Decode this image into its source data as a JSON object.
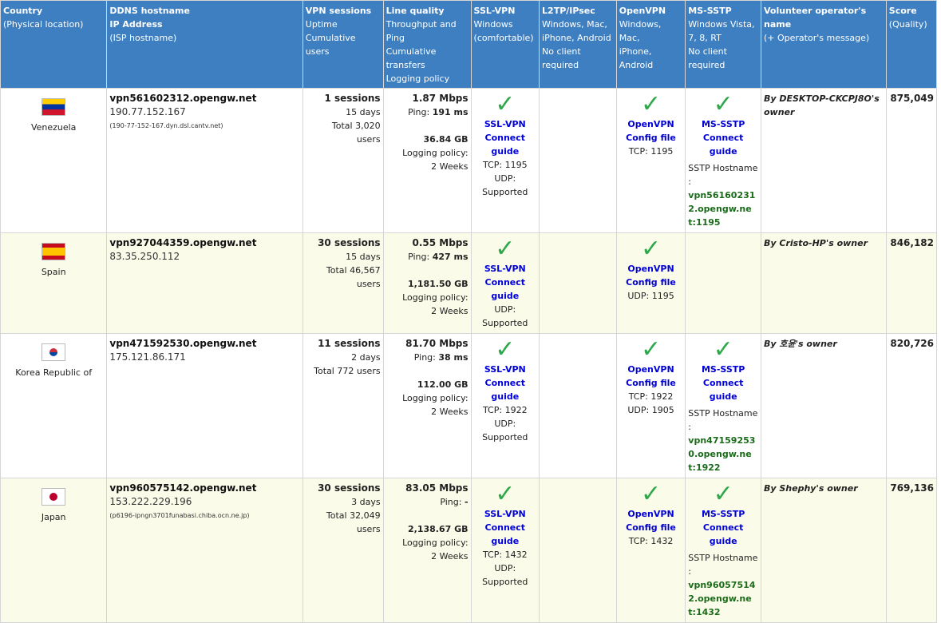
{
  "header": {
    "country": [
      "Country",
      "(Physical location)"
    ],
    "ddns": [
      "DDNS hostname",
      "IP Address",
      "(ISP hostname)"
    ],
    "sessions": [
      "VPN sessions",
      "Uptime",
      "Cumulative users"
    ],
    "quality": [
      "Line quality",
      "Throughput and Ping",
      "Cumulative transfers",
      "Logging policy"
    ],
    "sslvpn": [
      "SSL-VPN",
      "Windows",
      "(comfortable)"
    ],
    "l2tp": [
      "L2TP/IPsec",
      "Windows, Mac,",
      "iPhone, Android",
      "No client required"
    ],
    "openvpn": [
      "OpenVPN",
      "Windows, Mac,",
      "iPhone, Android"
    ],
    "mssstp": [
      "MS-SSTP",
      "Windows Vista,",
      "7, 8, RT",
      "No client required"
    ],
    "operator": [
      "Volunteer operator's name",
      "(+ Operator's message)"
    ],
    "score": [
      "Score",
      "(Quality)"
    ]
  },
  "rows": [
    {
      "country": "Venezuela",
      "host": "vpn561602312.opengw.net",
      "ip": "190.77.152.167",
      "isp": "(190-77-152-167.dyn.dsl.cantv.net)",
      "sessions": "1 sessions",
      "uptime": "15 days",
      "users": "Total 3,020 users",
      "throughput": "1.87 Mbps",
      "ping_label": "Ping: ",
      "ping": "191 ms",
      "transfer": "36.84 GB",
      "logging_label": "Logging policy:",
      "logging": "2 Weeks",
      "ssl_link1": "SSL-VPN",
      "ssl_link2": "Connect guide",
      "ssl_tcp": "TCP: 1195",
      "ssl_udp": "UDP: Supported",
      "ovpn_link1": "OpenVPN",
      "ovpn_link2": "Config file",
      "ovpn_p1": "TCP: 1195",
      "ovpn_p2": "",
      "sstp_link1": "MS-SSTP",
      "sstp_link2": "Connect guide",
      "sstp_label": "SSTP Hostname :",
      "sstp_host": "vpn561602312.opengw.net:1195",
      "operator": "By DESKTOP-CKCPJ8O's owner",
      "score": "875,049"
    },
    {
      "country": "Spain",
      "host": "vpn927044359.opengw.net",
      "ip": "83.35.250.112",
      "isp": "",
      "sessions": "30 sessions",
      "uptime": "15 days",
      "users": "Total 46,567 users",
      "throughput": "0.55 Mbps",
      "ping_label": "Ping: ",
      "ping": "427 ms",
      "transfer": "1,181.50 GB",
      "logging_label": "Logging policy:",
      "logging": "2 Weeks",
      "ssl_link1": "SSL-VPN",
      "ssl_link2": "Connect guide",
      "ssl_tcp": "",
      "ssl_udp": "UDP: Supported",
      "ovpn_link1": "OpenVPN",
      "ovpn_link2": "Config file",
      "ovpn_p1": "UDP: 1195",
      "ovpn_p2": "",
      "sstp_link1": "",
      "sstp_link2": "",
      "sstp_label": "",
      "sstp_host": "",
      "operator": "By Cristo-HP's owner",
      "score": "846,182"
    },
    {
      "country": "Korea Republic of",
      "host": "vpn471592530.opengw.net",
      "ip": "175.121.86.171",
      "isp": "",
      "sessions": "11 sessions",
      "uptime": "2 days",
      "users": "Total 772 users",
      "throughput": "81.70 Mbps",
      "ping_label": "Ping: ",
      "ping": "38 ms",
      "transfer": "112.00 GB",
      "logging_label": "Logging policy:",
      "logging": "2 Weeks",
      "ssl_link1": "SSL-VPN",
      "ssl_link2": "Connect guide",
      "ssl_tcp": "TCP: 1922",
      "ssl_udp": "UDP: Supported",
      "ovpn_link1": "OpenVPN",
      "ovpn_link2": "Config file",
      "ovpn_p1": "TCP: 1922",
      "ovpn_p2": "UDP: 1905",
      "sstp_link1": "MS-SSTP",
      "sstp_link2": "Connect guide",
      "sstp_label": "SSTP Hostname :",
      "sstp_host": "vpn471592530.opengw.net:1922",
      "operator": "By 호윤's owner",
      "score": "820,726"
    },
    {
      "country": "Japan",
      "host": "vpn960575142.opengw.net",
      "ip": "153.222.229.196",
      "isp": "(p6196-ipngn3701funabasi.chiba.ocn.ne.jp)",
      "sessions": "30 sessions",
      "uptime": "3 days",
      "users": "Total 32,049 users",
      "throughput": "83.05 Mbps",
      "ping_label": "Ping: ",
      "ping": "-",
      "transfer": "2,138.67 GB",
      "logging_label": "Logging policy:",
      "logging": "2 Weeks",
      "ssl_link1": "SSL-VPN",
      "ssl_link2": "Connect guide",
      "ssl_tcp": "TCP: 1432",
      "ssl_udp": "UDP: Supported",
      "ovpn_link1": "OpenVPN",
      "ovpn_link2": "Config file",
      "ovpn_p1": "TCP: 1432",
      "ovpn_p2": "",
      "sstp_link1": "MS-SSTP",
      "sstp_link2": "Connect guide",
      "sstp_label": "SSTP Hostname :",
      "sstp_host": "vpn960575142.opengw.net:1432",
      "operator": "By Shephy's owner",
      "score": "769,136"
    }
  ]
}
